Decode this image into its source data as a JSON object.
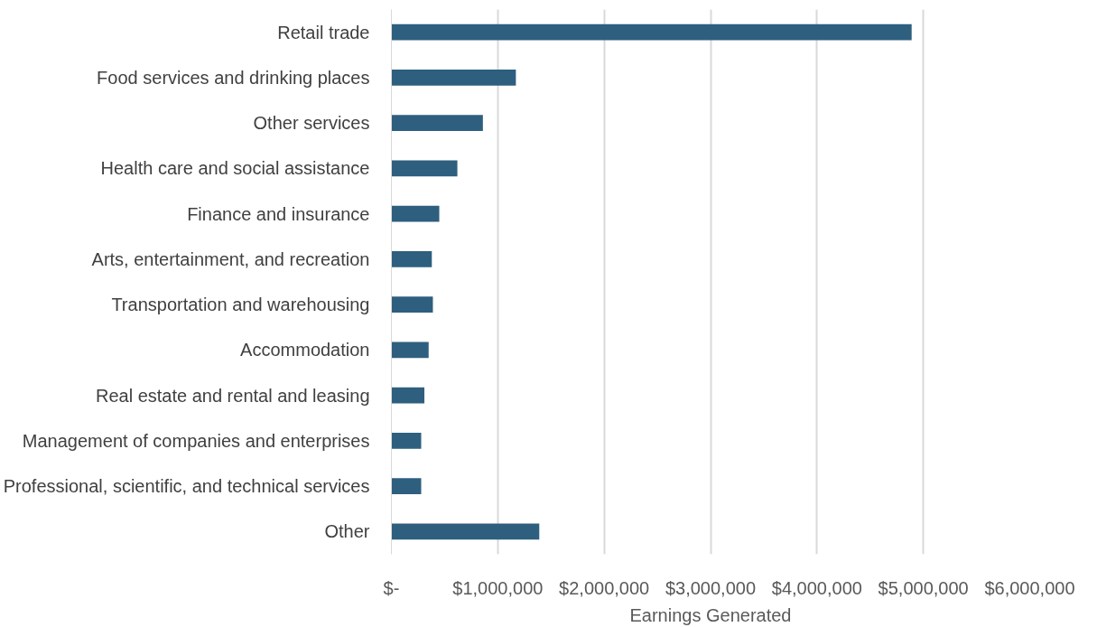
{
  "chart_data": {
    "type": "bar",
    "orientation": "horizontal",
    "categories": [
      "Retail trade",
      "Food services and drinking places",
      "Other services",
      "Health care and social assistance",
      "Finance and insurance",
      "Arts, entertainment, and recreation",
      "Transportation and warehousing",
      "Accommodation",
      "Real estate and rental and leasing",
      "Management of companies and enterprises",
      "Professional, scientific, and technical services",
      "Other"
    ],
    "values": [
      4890000,
      1170000,
      860000,
      620000,
      450000,
      380000,
      390000,
      350000,
      310000,
      280000,
      280000,
      1390000
    ],
    "color": "#2e5f7e",
    "xlabel": "Earnings Generated",
    "xlim": [
      0,
      6000000
    ],
    "xticks": [
      {
        "value": 0,
        "label": "$-"
      },
      {
        "value": 1000000,
        "label": "$1,000,000"
      },
      {
        "value": 2000000,
        "label": "$2,000,000"
      },
      {
        "value": 3000000,
        "label": "$3,000,000"
      },
      {
        "value": 4000000,
        "label": "$4,000,000"
      },
      {
        "value": 5000000,
        "label": "$5,000,000"
      },
      {
        "value": 6000000,
        "label": "$6,000,000"
      }
    ],
    "grid": "x"
  }
}
